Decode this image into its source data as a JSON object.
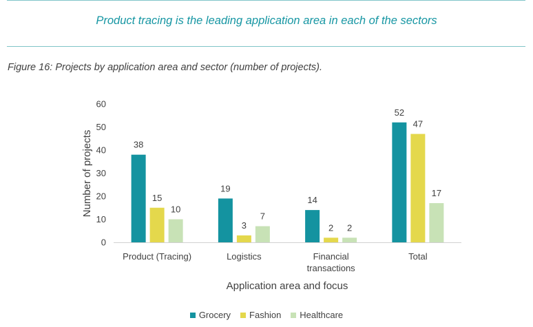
{
  "header": {
    "headline": "Product tracing is the leading application area in each of the sectors",
    "figure_caption": "Figure 16: Projects by application area and sector (number of projects)."
  },
  "chart_data": {
    "type": "bar",
    "categories": [
      [
        "Product (Tracing)"
      ],
      [
        "Logistics"
      ],
      [
        "Financial",
        "transactions"
      ],
      [
        "Total"
      ]
    ],
    "series": [
      {
        "name": "Grocery",
        "color": "#1493a0",
        "values": [
          38,
          19,
          14,
          52
        ]
      },
      {
        "name": "Fashion",
        "color": "#e4d84c",
        "values": [
          15,
          3,
          2,
          47
        ]
      },
      {
        "name": "Healthcare",
        "color": "#c8e2b6",
        "values": [
          10,
          7,
          2,
          17
        ]
      }
    ],
    "xlabel": "Application area and focus",
    "ylabel": "Number of projects",
    "ylim": [
      0,
      60
    ],
    "yticks": [
      0,
      10,
      20,
      30,
      40,
      50,
      60
    ],
    "grid": false,
    "legend_position": "bottom",
    "data_labels": true
  }
}
